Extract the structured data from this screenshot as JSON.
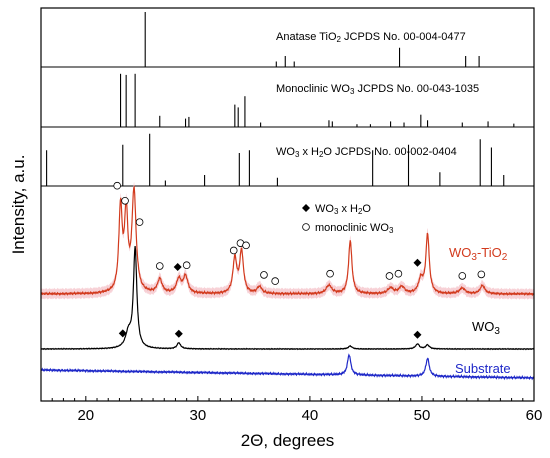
{
  "chart_data": {
    "type": "line",
    "xlabel": "2Θ, degrees",
    "ylabel": "Intensity, a.u.",
    "xlim": [
      16,
      60
    ],
    "xticks": [
      20,
      30,
      40,
      50,
      60
    ],
    "reference_panels": [
      {
        "label": "Anatase TiO2 JCPDS No. 00-004-0477",
        "lines": [
          {
            "x": 25.3,
            "h": 1.0
          },
          {
            "x": 37.0,
            "h": 0.1
          },
          {
            "x": 37.8,
            "h": 0.2
          },
          {
            "x": 38.6,
            "h": 0.1
          },
          {
            "x": 48.0,
            "h": 0.35
          },
          {
            "x": 53.9,
            "h": 0.2
          },
          {
            "x": 55.1,
            "h": 0.2
          }
        ]
      },
      {
        "label": "Monoclinic WO3 JCPDS No. 00-043-1035",
        "lines": [
          {
            "x": 23.1,
            "h": 0.95
          },
          {
            "x": 23.6,
            "h": 0.93
          },
          {
            "x": 24.4,
            "h": 0.95
          },
          {
            "x": 26.6,
            "h": 0.2
          },
          {
            "x": 28.9,
            "h": 0.15
          },
          {
            "x": 29.2,
            "h": 0.18
          },
          {
            "x": 33.3,
            "h": 0.4
          },
          {
            "x": 33.6,
            "h": 0.35
          },
          {
            "x": 34.2,
            "h": 0.55
          },
          {
            "x": 35.6,
            "h": 0.08
          },
          {
            "x": 41.7,
            "h": 0.12
          },
          {
            "x": 42.0,
            "h": 0.1
          },
          {
            "x": 44.2,
            "h": 0.05
          },
          {
            "x": 45.4,
            "h": 0.05
          },
          {
            "x": 47.2,
            "h": 0.1
          },
          {
            "x": 48.4,
            "h": 0.08
          },
          {
            "x": 49.9,
            "h": 0.22
          },
          {
            "x": 50.5,
            "h": 0.12
          },
          {
            "x": 53.6,
            "h": 0.08
          },
          {
            "x": 55.9,
            "h": 0.1
          },
          {
            "x": 58.2,
            "h": 0.06
          }
        ]
      },
      {
        "label": "WO3 x H2O  JCPDS No. 00-002-0404",
        "lines": [
          {
            "x": 16.5,
            "h": 0.65
          },
          {
            "x": 23.3,
            "h": 0.75
          },
          {
            "x": 25.7,
            "h": 0.95
          },
          {
            "x": 27.1,
            "h": 0.1
          },
          {
            "x": 30.6,
            "h": 0.2
          },
          {
            "x": 33.7,
            "h": 0.6
          },
          {
            "x": 34.6,
            "h": 0.65
          },
          {
            "x": 37.1,
            "h": 0.15
          },
          {
            "x": 45.6,
            "h": 0.65
          },
          {
            "x": 48.8,
            "h": 0.75
          },
          {
            "x": 51.6,
            "h": 0.25
          },
          {
            "x": 55.2,
            "h": 0.85
          },
          {
            "x": 56.2,
            "h": 0.7
          },
          {
            "x": 57.3,
            "h": 0.2
          }
        ]
      }
    ],
    "series": [
      {
        "name": "WO3-TiO2",
        "color": "#d23a1d",
        "peaks": [
          [
            23.1,
            0.6,
            0.18
          ],
          [
            23.6,
            0.55,
            0.18
          ],
          [
            24.3,
            0.72,
            0.22
          ],
          [
            26.6,
            0.1,
            0.25
          ],
          [
            28.3,
            0.1,
            0.25
          ],
          [
            28.9,
            0.12,
            0.25
          ],
          [
            33.3,
            0.25,
            0.2
          ],
          [
            33.9,
            0.3,
            0.2
          ],
          [
            35.5,
            0.05,
            0.25
          ],
          [
            41.7,
            0.06,
            0.3
          ],
          [
            43.6,
            0.38,
            0.18
          ],
          [
            47.2,
            0.04,
            0.3
          ],
          [
            48.2,
            0.05,
            0.3
          ],
          [
            49.9,
            0.1,
            0.25
          ],
          [
            50.5,
            0.42,
            0.18
          ],
          [
            53.6,
            0.04,
            0.3
          ],
          [
            55.4,
            0.06,
            0.25
          ]
        ]
      },
      {
        "name": "WO3",
        "color": "#000000",
        "peaks": [
          [
            24.4,
            1.0,
            0.18
          ],
          [
            23.8,
            0.15,
            0.3
          ],
          [
            28.3,
            0.06,
            0.2
          ],
          [
            43.6,
            0.03,
            0.2
          ],
          [
            49.6,
            0.05,
            0.2
          ],
          [
            50.5,
            0.04,
            0.2
          ]
        ]
      },
      {
        "name": "Substrate",
        "color": "#1e28c8",
        "peaks": [
          [
            43.5,
            0.34,
            0.18
          ],
          [
            50.5,
            0.3,
            0.18
          ]
        ]
      }
    ],
    "legend": [
      {
        "marker": "◆",
        "text": "WO3 x H2O"
      },
      {
        "marker": "○",
        "text": "monoclinic WO3"
      }
    ],
    "markers_wo3tio2": {
      "circles": [
        22.8,
        23.5,
        24.8,
        26.6,
        29.0,
        33.2,
        33.8,
        34.3,
        35.9,
        36.9,
        41.8,
        47.1,
        47.9,
        53.6,
        55.3
      ],
      "diamonds": [
        28.2,
        49.6
      ]
    },
    "markers_wo3": {
      "diamonds": [
        23.3,
        28.3,
        49.6
      ]
    }
  }
}
